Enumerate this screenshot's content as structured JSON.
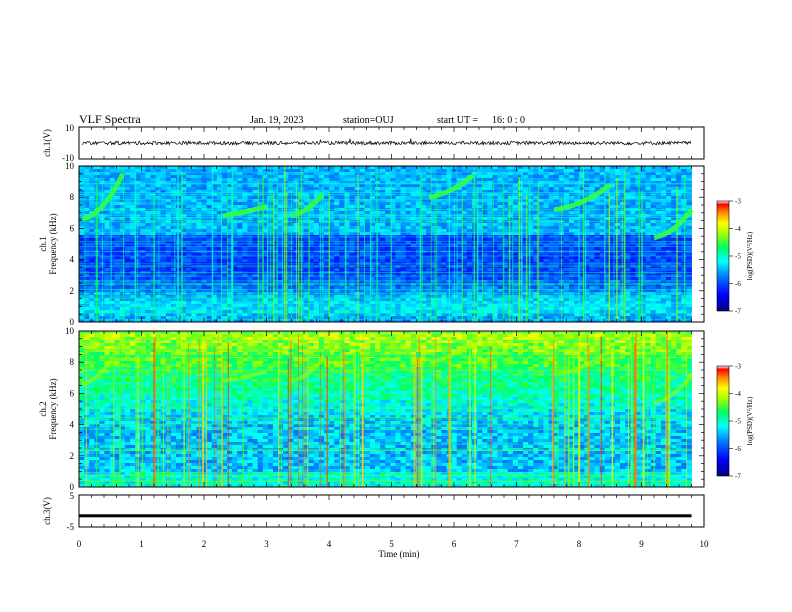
{
  "chart_data": {
    "type": "heatmap",
    "title": "VLF Spectra",
    "header": {
      "date": "Jan. 19, 2023",
      "station": "station=OUJ",
      "start_label": "start  UT  =",
      "start_time": "16: 0  : 0"
    },
    "x": {
      "label": "Time  (min)",
      "range": [
        0,
        10
      ],
      "ticks": [
        "0",
        "1",
        "2",
        "3",
        "4",
        "5",
        "6",
        "7",
        "8",
        "9",
        "10"
      ]
    },
    "panels": [
      {
        "kind": "waveform",
        "ylabel": "ch.1(V)",
        "ylim": [
          -10,
          10
        ],
        "ticks": [
          "10",
          "-10"
        ],
        "baseline": 0,
        "x_end": 9.8
      },
      {
        "kind": "spectrogram",
        "ylabel_top": "ch.1",
        "ylabel": "Frequency  (kHz)",
        "ylim": [
          0,
          10
        ],
        "ticks": [
          "0",
          "2",
          "4",
          "6",
          "8",
          "10"
        ],
        "x_end": 9.8,
        "zlim": [
          -7,
          -3
        ]
      },
      {
        "kind": "spectrogram",
        "ylabel_top": "ch.2",
        "ylabel": "Frequency  (kHz)",
        "ylim": [
          0,
          10
        ],
        "ticks": [
          "0",
          "2",
          "4",
          "6",
          "8",
          "10"
        ],
        "x_end": 9.8,
        "zlim": [
          -7,
          -3
        ]
      },
      {
        "kind": "level",
        "ylabel": "ch.3(V)",
        "ylim": [
          -5,
          5
        ],
        "ticks": [
          "5",
          "-5"
        ],
        "value": -1.5,
        "x_end": 9.8
      }
    ],
    "colorbar": {
      "label": "log(PSD)(V²/Hz)",
      "ticks": [
        "-3",
        "-4",
        "-5",
        "-6",
        "-7"
      ],
      "range": [
        -7,
        -3
      ]
    },
    "colors": [
      "#000080",
      "#0000ff",
      "#0080ff",
      "#00ffff",
      "#00ff80",
      "#80ff00",
      "#ffff00",
      "#ff8000",
      "#ff0000",
      "#ffffff"
    ]
  }
}
